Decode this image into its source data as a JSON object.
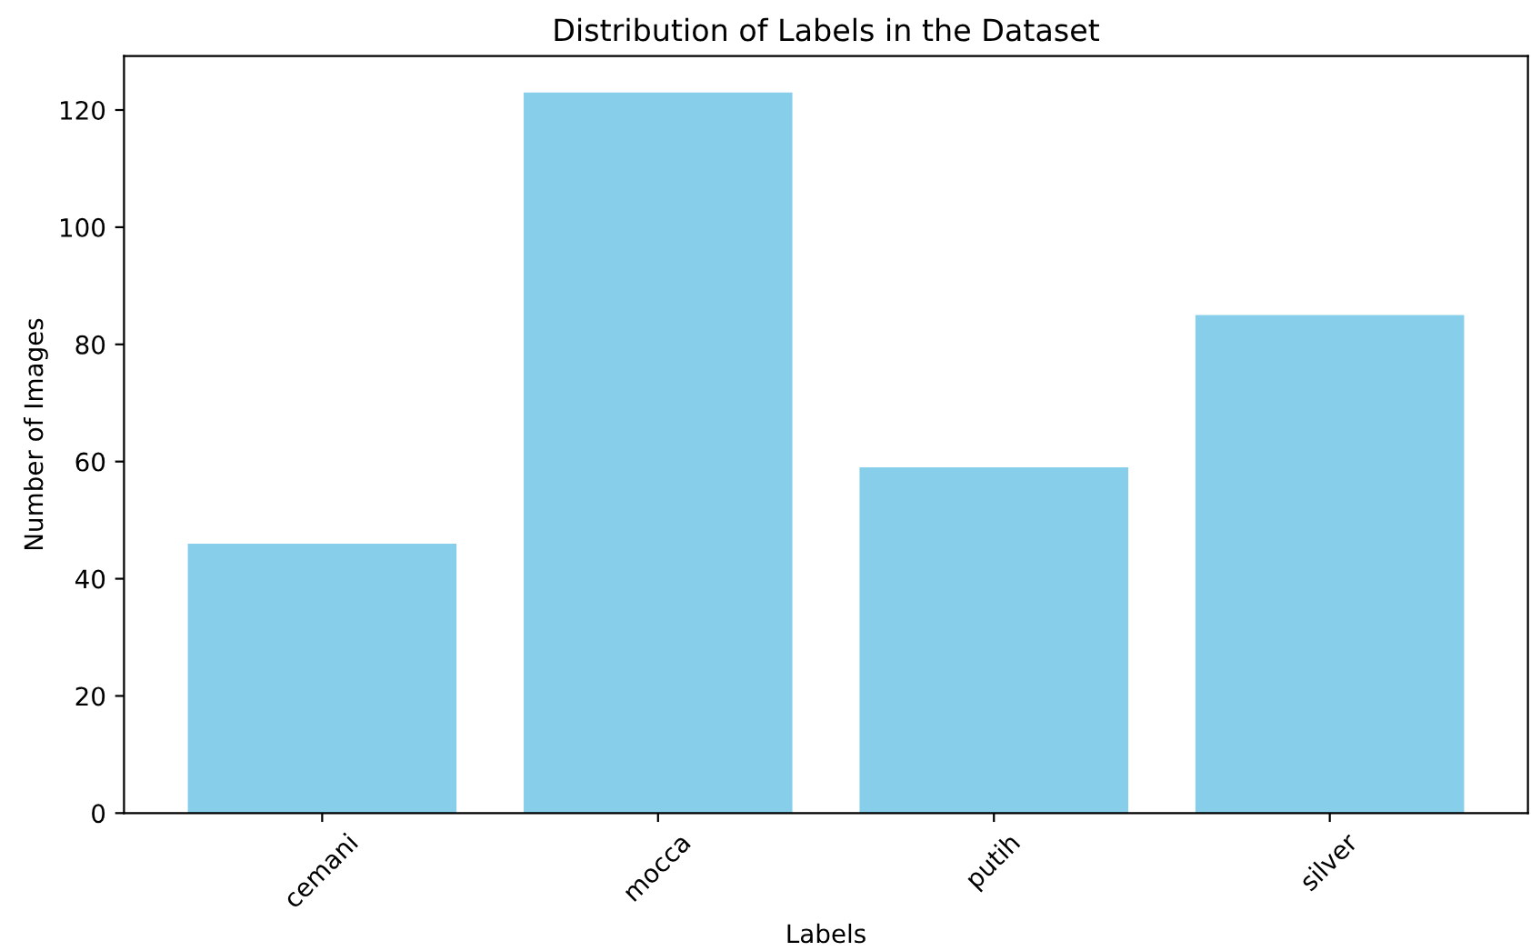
{
  "chart_data": {
    "type": "bar",
    "title": "Distribution of Labels in the Dataset",
    "xlabel": "Labels",
    "ylabel": "Number of Images",
    "categories": [
      "cemani",
      "mocca",
      "putih",
      "silver"
    ],
    "values": [
      46,
      123,
      59,
      85
    ],
    "color": "#87ceeb",
    "ylim": [
      0,
      129.2
    ],
    "yticks": [
      0,
      20,
      40,
      60,
      80,
      100,
      120
    ],
    "grid": false
  }
}
